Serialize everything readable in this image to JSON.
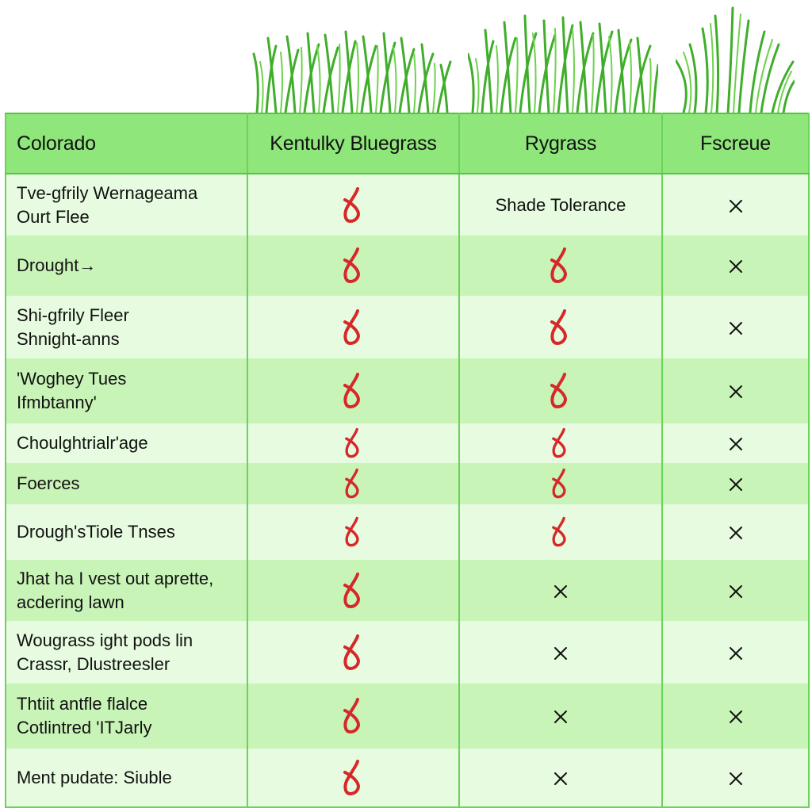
{
  "icons": {
    "check": "red-check-icon",
    "cross": "x-icon",
    "grass": "grass-tuft-icon"
  },
  "colors": {
    "header_bg": "#8fe67a",
    "row_light": "#e6fbdf",
    "row_mid": "#c9f4b8",
    "border": "#6bd35a",
    "check": "#d62828",
    "cross": "#111111",
    "grass": "#3fae2a"
  },
  "table": {
    "headers": [
      "Colorado",
      "Kentulky Bluegrass",
      "Rygrass",
      "Fscreue"
    ],
    "rows": [
      {
        "label_lines": [
          "Tve-gfrily Wernageama",
          "Ourt Flee"
        ],
        "marks": [
          "check",
          "text",
          "cross"
        ],
        "text": "Shade Tolerance"
      },
      {
        "label_lines": [
          "Drought→"
        ],
        "marks": [
          "check",
          "check",
          "cross"
        ]
      },
      {
        "label_lines": [
          "Shi-gfrily Fleer",
          "Shnight-anns"
        ],
        "marks": [
          "check",
          "check",
          "cross"
        ]
      },
      {
        "label_lines": [
          "'Woghey Tues",
          "Ifmbtanny'"
        ],
        "marks": [
          "check",
          "check",
          "cross"
        ]
      },
      {
        "label_lines": [
          "Choulghtrialr'age"
        ],
        "marks": [
          "check",
          "check",
          "cross"
        ]
      },
      {
        "label_lines": [
          "Foerces"
        ],
        "marks": [
          "check",
          "check",
          "cross"
        ]
      },
      {
        "label_lines": [
          "Drough'sTiole Tnses"
        ],
        "marks": [
          "check",
          "check",
          "cross"
        ]
      },
      {
        "label_lines": [
          "Jhat ha I vest out aprette,",
          "acdering lawn"
        ],
        "marks": [
          "check",
          "cross",
          "cross"
        ]
      },
      {
        "label_lines": [
          "Wougrass ight pods lin",
          "Crassr, Dlustreesler"
        ],
        "marks": [
          "check",
          "cross",
          "cross"
        ]
      },
      {
        "label_lines": [
          "Thtiit antfle flalce",
          "Cotlintred 'ITJarly"
        ],
        "marks": [
          "check",
          "cross",
          "cross"
        ]
      },
      {
        "label_lines": [
          "Ment pudate: Siuble"
        ],
        "marks": [
          "check",
          "cross",
          "cross"
        ]
      }
    ]
  }
}
